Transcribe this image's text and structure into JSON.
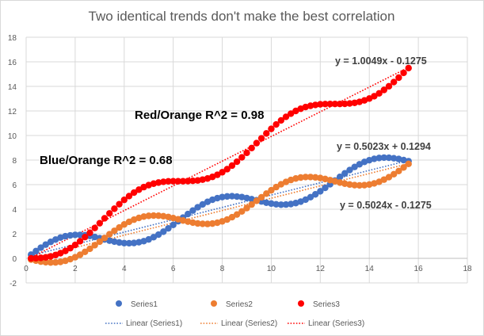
{
  "chart_data": {
    "type": "scatter",
    "title": "Two identical trends don't make the best correlation",
    "xlim": [
      0,
      18
    ],
    "ylim": [
      -2,
      18
    ],
    "x_ticks": [
      0,
      2,
      4,
      6,
      8,
      10,
      12,
      14,
      16,
      18
    ],
    "y_ticks": [
      -2,
      0,
      2,
      4,
      6,
      8,
      10,
      12,
      14,
      16,
      18
    ],
    "grid": true,
    "legend_position": "bottom",
    "x": [
      0.2,
      0.4,
      0.6,
      0.8,
      1.0,
      1.2,
      1.4,
      1.6,
      1.8,
      2.0,
      2.2,
      2.4,
      2.6,
      2.8,
      3.0,
      3.2,
      3.4,
      3.6,
      3.8,
      4.0,
      4.2,
      4.4,
      4.6,
      4.8,
      5.0,
      5.2,
      5.4,
      5.6,
      5.8,
      6.0,
      6.2,
      6.4,
      6.6,
      6.8,
      7.0,
      7.2,
      7.4,
      7.6,
      7.8,
      8.0,
      8.2,
      8.4,
      8.6,
      8.8,
      9.0,
      9.2,
      9.4,
      9.6,
      9.8,
      10.0,
      10.2,
      10.4,
      10.6,
      10.8,
      11.0,
      11.2,
      11.4,
      11.6,
      11.8,
      12.0,
      12.2,
      12.4,
      12.6,
      12.8,
      13.0,
      13.2,
      13.4,
      13.6,
      13.8,
      14.0,
      14.2,
      14.4,
      14.6,
      14.8,
      15.0,
      15.2,
      15.4,
      15.6
    ],
    "series": [
      {
        "name": "Series1",
        "color": "#4472C4",
        "values": [
          0.3,
          0.59,
          0.87,
          1.12,
          1.34,
          1.53,
          1.69,
          1.8,
          1.87,
          1.91,
          1.91,
          1.88,
          1.82,
          1.74,
          1.64,
          1.54,
          1.44,
          1.36,
          1.29,
          1.24,
          1.23,
          1.25,
          1.31,
          1.4,
          1.54,
          1.72,
          1.93,
          2.17,
          2.44,
          2.72,
          3.02,
          3.32,
          3.61,
          3.89,
          4.16,
          4.39,
          4.6,
          4.77,
          4.9,
          4.99,
          5.04,
          5.06,
          5.03,
          4.99,
          4.91,
          4.82,
          4.73,
          4.63,
          4.53,
          4.46,
          4.4,
          4.37,
          4.38,
          4.42,
          4.5,
          4.62,
          4.78,
          4.98,
          5.21,
          5.46,
          5.74,
          6.03,
          6.33,
          6.63,
          6.92,
          7.19,
          7.44,
          7.66,
          7.85,
          7.99,
          8.1,
          8.17,
          8.2,
          8.19,
          8.15,
          8.09,
          8.0,
          7.91
        ],
        "trendline": {
          "name": "Linear (Series1)",
          "slope": 0.5023,
          "intercept": 0.1294,
          "equation": "y = 0.5023x + 0.1294"
        }
      },
      {
        "name": "Series2",
        "color": "#ED7D31",
        "values": [
          -0.1,
          -0.19,
          -0.27,
          -0.32,
          -0.34,
          -0.33,
          -0.29,
          -0.2,
          -0.07,
          0.09,
          0.29,
          0.53,
          0.78,
          1.07,
          1.36,
          1.66,
          1.96,
          2.24,
          2.51,
          2.76,
          2.97,
          3.15,
          3.29,
          3.4,
          3.46,
          3.48,
          3.47,
          3.43,
          3.37,
          3.28,
          3.18,
          3.08,
          2.99,
          2.91,
          2.84,
          2.81,
          2.8,
          2.83,
          2.9,
          3.01,
          3.16,
          3.35,
          3.57,
          3.82,
          4.09,
          4.38,
          4.68,
          4.97,
          5.27,
          5.54,
          5.8,
          6.03,
          6.22,
          6.38,
          6.5,
          6.58,
          6.62,
          6.62,
          6.59,
          6.54,
          6.46,
          6.37,
          6.27,
          6.17,
          6.08,
          6.01,
          5.96,
          5.94,
          5.96,
          6.01,
          6.1,
          6.23,
          6.41,
          6.61,
          6.85,
          7.11,
          7.4,
          7.69
        ],
        "trendline": {
          "name": "Linear (Series2)",
          "slope": 0.5024,
          "intercept": -0.1275,
          "equation": "y = 0.5024x - 0.1275"
        }
      },
      {
        "name": "Series3",
        "color": "#FF0000",
        "values": [
          0.0,
          0.01,
          0.04,
          0.08,
          0.16,
          0.27,
          0.42,
          0.6,
          0.83,
          1.09,
          1.39,
          1.73,
          2.08,
          2.47,
          2.86,
          3.26,
          3.66,
          4.04,
          4.41,
          4.76,
          5.07,
          5.35,
          5.59,
          5.8,
          5.96,
          6.08,
          6.17,
          6.23,
          6.27,
          6.28,
          6.28,
          6.28,
          6.29,
          6.31,
          6.34,
          6.41,
          6.5,
          6.63,
          6.8,
          7.01,
          7.26,
          7.55,
          7.87,
          8.22,
          8.59,
          8.98,
          9.38,
          9.77,
          10.17,
          10.54,
          10.9,
          11.23,
          11.52,
          11.78,
          12.0,
          12.18,
          12.32,
          12.42,
          12.49,
          12.54,
          12.56,
          12.57,
          12.57,
          12.57,
          12.58,
          12.61,
          12.66,
          12.74,
          12.86,
          13.01,
          13.2,
          13.43,
          13.71,
          14.01,
          14.35,
          14.71,
          15.1,
          15.49
        ],
        "trendline": {
          "name": "Linear (Series3)",
          "slope": 1.0049,
          "intercept": -0.1275,
          "equation": "y = 1.0049x - 0.1275"
        }
      }
    ],
    "annotations": {
      "red_orange": "Red/Orange R^2 = 0.98",
      "blue_orange": "Blue/Orange R^2 = 0.68"
    }
  }
}
